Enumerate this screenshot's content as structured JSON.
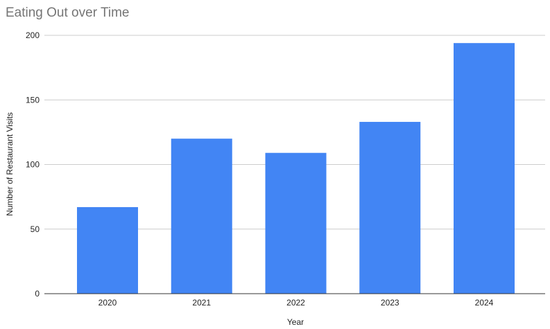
{
  "chart_data": {
    "type": "bar",
    "title": "Eating Out over Time",
    "xlabel": "Year",
    "ylabel": "Number of Restaurant Visits",
    "categories": [
      "2020",
      "2021",
      "2022",
      "2023",
      "2024"
    ],
    "values": [
      67,
      120,
      109,
      133,
      194
    ],
    "ylim": [
      0,
      200
    ],
    "yticks": [
      0,
      50,
      100,
      150,
      200
    ],
    "grid": true,
    "bar_color": "#4285f4"
  }
}
